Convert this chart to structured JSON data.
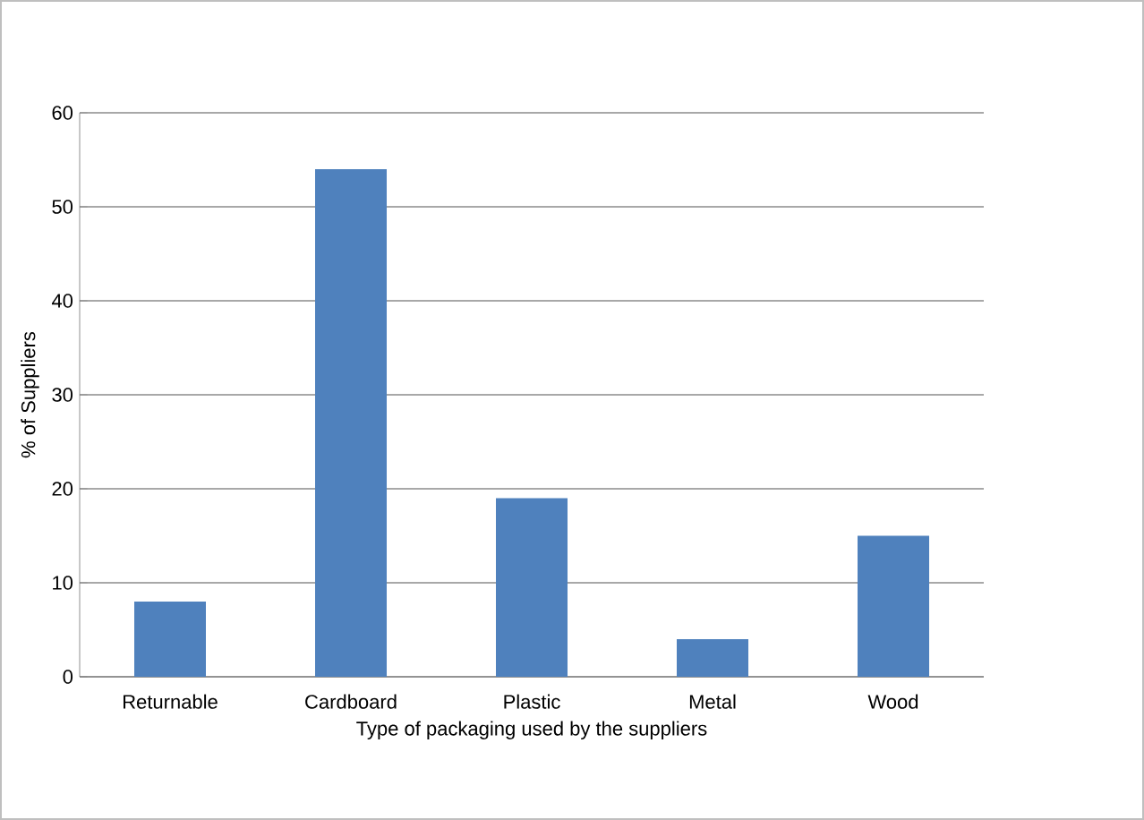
{
  "chart_data": {
    "type": "bar",
    "xlabel": "Type of packaging used by the suppliers",
    "ylabel": "% of Suppliers",
    "categories": [
      "Returnable",
      "Cardboard",
      "Plastic",
      "Metal",
      "Wood"
    ],
    "values": [
      8,
      54,
      19,
      4,
      15
    ],
    "color": "#4f81bd",
    "ylim": [
      0,
      60
    ],
    "yticks": [
      0,
      10,
      20,
      30,
      40,
      50,
      60
    ],
    "grid": "y"
  }
}
